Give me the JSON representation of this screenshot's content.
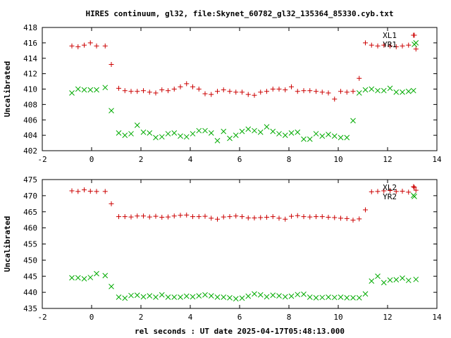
{
  "title": "HIRES continuum, gl32, file:Skynet_60782_gl32_135364_85330.cyb.txt",
  "xlabel": "rel seconds : UT date 2025-04-17T05:48:13.000",
  "colors": {
    "series_1": "#cc0000",
    "series_2": "#00aa00",
    "frame": "#000000"
  },
  "chart_data": [
    {
      "type": "scatter",
      "ylabel": "Uncalibrated",
      "xlim": [
        -2,
        14
      ],
      "ylim": [
        402,
        418
      ],
      "x_ticks": [
        -2,
        0,
        2,
        4,
        6,
        8,
        10,
        12,
        14
      ],
      "y_ticks": [
        402,
        404,
        406,
        408,
        410,
        412,
        414,
        416,
        418
      ],
      "legend_position": "top-right",
      "x": [
        -0.8,
        -0.55,
        -0.3,
        -0.05,
        0.2,
        0.55,
        0.8,
        1.1,
        1.35,
        1.6,
        1.85,
        2.1,
        2.35,
        2.6,
        2.85,
        3.1,
        3.35,
        3.6,
        3.85,
        4.1,
        4.35,
        4.6,
        4.85,
        5.1,
        5.35,
        5.6,
        5.85,
        6.1,
        6.35,
        6.6,
        6.85,
        7.1,
        7.35,
        7.6,
        7.85,
        8.1,
        8.35,
        8.6,
        8.85,
        9.1,
        9.35,
        9.6,
        9.85,
        10.1,
        10.35,
        10.6,
        10.85,
        11.1,
        11.35,
        11.6,
        11.85,
        12.1,
        12.35,
        12.6,
        12.85,
        13.05,
        13.15
      ],
      "series": [
        {
          "name": "XL1",
          "marker": "plus",
          "values": [
            415.6,
            415.5,
            415.7,
            416.0,
            415.6,
            415.6,
            413.2,
            410.1,
            409.8,
            409.7,
            409.7,
            409.8,
            409.6,
            409.5,
            409.9,
            409.8,
            410.0,
            410.3,
            410.7,
            410.3,
            410.0,
            409.4,
            409.3,
            409.7,
            409.9,
            409.7,
            409.6,
            409.6,
            409.3,
            409.2,
            409.6,
            409.7,
            410.0,
            410.0,
            409.9,
            410.3,
            409.7,
            409.8,
            409.8,
            409.7,
            409.6,
            409.5,
            408.7,
            409.7,
            409.6,
            409.7,
            411.4,
            416.0,
            415.7,
            415.6,
            415.7,
            415.6,
            415.5,
            415.6,
            415.7,
            417.0,
            415.2
          ]
        },
        {
          "name": "YR1",
          "marker": "cross",
          "values": [
            409.5,
            410.0,
            409.9,
            409.9,
            409.9,
            410.2,
            407.2,
            404.3,
            404.0,
            404.2,
            405.3,
            404.4,
            404.3,
            403.7,
            403.8,
            404.2,
            404.3,
            403.9,
            403.8,
            404.2,
            404.6,
            404.6,
            404.3,
            403.3,
            404.5,
            403.6,
            404.0,
            404.5,
            404.8,
            404.6,
            404.4,
            405.1,
            404.5,
            404.2,
            404.0,
            404.3,
            404.4,
            403.5,
            403.5,
            404.2,
            403.9,
            404.1,
            403.9,
            403.7,
            403.7,
            405.9,
            409.5,
            409.9,
            410.0,
            409.8,
            409.8,
            410.1,
            409.6,
            409.6,
            409.7,
            409.8,
            416.0
          ]
        }
      ]
    },
    {
      "type": "scatter",
      "ylabel": "Uncalibrated",
      "xlabel": "rel seconds : UT date 2025-04-17T05:48:13.000",
      "xlim": [
        -2,
        14
      ],
      "ylim": [
        435,
        475
      ],
      "x_ticks": [
        -2,
        0,
        2,
        4,
        6,
        8,
        10,
        12,
        14
      ],
      "y_ticks": [
        435,
        440,
        445,
        450,
        455,
        460,
        465,
        470,
        475
      ],
      "legend_position": "top-right",
      "x": [
        -0.8,
        -0.55,
        -0.3,
        -0.05,
        0.2,
        0.55,
        0.8,
        1.1,
        1.35,
        1.6,
        1.85,
        2.1,
        2.35,
        2.6,
        2.85,
        3.1,
        3.35,
        3.6,
        3.85,
        4.1,
        4.35,
        4.6,
        4.85,
        5.1,
        5.35,
        5.6,
        5.85,
        6.1,
        6.35,
        6.6,
        6.85,
        7.1,
        7.35,
        7.6,
        7.85,
        8.1,
        8.35,
        8.6,
        8.85,
        9.1,
        9.35,
        9.6,
        9.85,
        10.1,
        10.35,
        10.6,
        10.85,
        11.1,
        11.35,
        11.6,
        11.85,
        12.1,
        12.35,
        12.6,
        12.85,
        13.05,
        13.15
      ],
      "series": [
        {
          "name": "XL2",
          "marker": "plus",
          "values": [
            471.5,
            471.3,
            471.8,
            471.4,
            471.3,
            471.3,
            467.5,
            463.5,
            463.5,
            463.4,
            463.7,
            463.7,
            463.4,
            463.6,
            463.3,
            463.4,
            463.7,
            463.9,
            464.0,
            463.5,
            463.5,
            463.6,
            463.0,
            462.7,
            463.4,
            463.5,
            463.7,
            463.5,
            463.1,
            463.1,
            463.2,
            463.3,
            463.5,
            463.0,
            462.7,
            463.6,
            463.8,
            463.5,
            463.4,
            463.5,
            463.5,
            463.3,
            463.2,
            463.0,
            462.9,
            462.4,
            462.8,
            465.6,
            471.2,
            471.3,
            471.5,
            471.6,
            471.3,
            471.4,
            471.1,
            472.8,
            471.7
          ]
        },
        {
          "name": "YR2",
          "marker": "cross",
          "values": [
            444.5,
            444.5,
            444.2,
            444.6,
            445.8,
            445.2,
            441.8,
            438.5,
            438.2,
            439.0,
            439.1,
            438.6,
            438.9,
            438.5,
            439.2,
            438.5,
            438.5,
            438.5,
            438.8,
            438.6,
            438.9,
            439.2,
            438.9,
            438.5,
            438.5,
            438.3,
            438.0,
            438.2,
            438.8,
            439.5,
            439.2,
            438.6,
            439.1,
            438.9,
            438.6,
            438.8,
            439.3,
            439.4,
            438.5,
            438.3,
            438.4,
            438.5,
            438.4,
            438.5,
            438.3,
            438.3,
            438.3,
            439.5,
            443.5,
            445.0,
            443.0,
            443.8,
            443.9,
            444.4,
            443.7,
            470.1,
            444.0
          ]
        }
      ]
    }
  ]
}
